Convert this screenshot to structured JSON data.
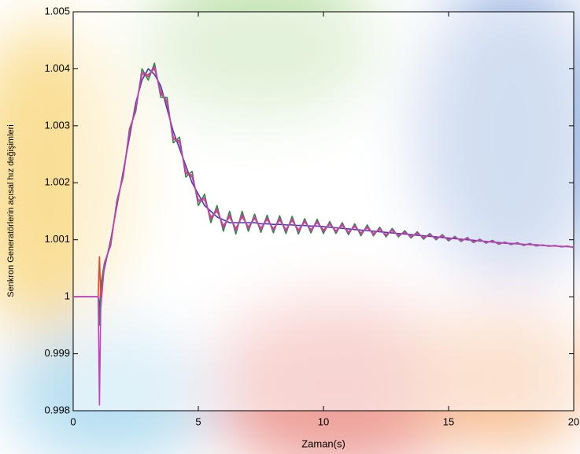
{
  "chart_data": {
    "type": "line",
    "xlabel": "Zaman(s)",
    "ylabel": "Senkron Generatörlerin açısal hız değişimleri",
    "xlim": [
      0,
      20
    ],
    "xticks": [
      0,
      5,
      10,
      15,
      20
    ],
    "ylim": [
      0.998,
      1.005
    ],
    "yticks": [
      0.998,
      0.999,
      1,
      1.001,
      1.002,
      1.003,
      1.004,
      1.005
    ],
    "grid": false,
    "x": [
      0,
      0.5,
      1,
      1.05,
      1.1,
      1.25,
      1.5,
      1.75,
      2,
      2.25,
      2.5,
      2.75,
      3,
      3.25,
      3.5,
      3.75,
      4,
      4.25,
      4.5,
      4.75,
      5,
      5.25,
      5.5,
      5.75,
      6,
      6.25,
      6.5,
      6.75,
      7,
      7.25,
      7.5,
      7.75,
      8,
      8.25,
      8.5,
      8.75,
      9,
      9.25,
      9.5,
      9.75,
      10,
      10.25,
      10.5,
      10.75,
      11,
      11.25,
      11.5,
      11.75,
      12,
      12.25,
      12.5,
      12.75,
      13,
      13.25,
      13.5,
      13.75,
      14,
      14.25,
      14.5,
      14.75,
      15,
      15.25,
      15.5,
      15.75,
      16,
      16.25,
      16.5,
      16.75,
      17,
      17.25,
      17.5,
      17.75,
      18,
      18.25,
      18.5,
      18.75,
      19,
      19.25,
      19.5,
      19.75,
      20
    ],
    "series": [
      {
        "color": "#3d3db8",
        "values": [
          1,
          1,
          1,
          0.9998,
          1.0001,
          1.0005,
          1.001,
          1.0016,
          1.0022,
          1.0028,
          1.0034,
          1.0038,
          1.004,
          1.0039,
          1.0037,
          1.0033,
          1.0029,
          1.0026,
          1.0023,
          1.002,
          1.0018,
          1.0016,
          1.0015,
          1.0014,
          1.00135,
          1.0013,
          1.0013,
          1.0013,
          1.0013,
          1.0013,
          1.00128,
          1.00128,
          1.00127,
          1.00127,
          1.00126,
          1.00126,
          1.00125,
          1.00125,
          1.00124,
          1.00124,
          1.00123,
          1.00122,
          1.00121,
          1.0012,
          1.00119,
          1.00118,
          1.00117,
          1.00116,
          1.00115,
          1.00114,
          1.00113,
          1.00112,
          1.00111,
          1.0011,
          1.00109,
          1.00108,
          1.00107,
          1.00106,
          1.00105,
          1.00104,
          1.00103,
          1.00102,
          1.00101,
          1.001,
          1.00099,
          1.00098,
          1.00097,
          1.00096,
          1.00095,
          1.00094,
          1.000935,
          1.00093,
          1.00092,
          1.000915,
          1.00091,
          1.0009,
          1.000895,
          1.00089,
          1.000885,
          1.00088,
          1.00087
        ]
      },
      {
        "color": "#2e8a3c",
        "values": [
          1,
          1,
          1,
          0.9995,
          1.0002,
          1.0006,
          1.0009,
          1.0017,
          1.0021,
          1.00295,
          1.00325,
          1.004,
          1.0038,
          1.0041,
          1.0035,
          1.0035,
          1.0027,
          1.0028,
          1.0021,
          1.0022,
          1.0016,
          1.0018,
          1.0013,
          1.0016,
          1.00115,
          1.0015,
          1.0011,
          1.0015,
          1.00115,
          1.00145,
          1.00113,
          1.00143,
          1.00112,
          1.00142,
          1.00111,
          1.00141,
          1.0011,
          1.00137,
          1.00112,
          1.00136,
          1.00111,
          1.00132,
          1.00111,
          1.0013,
          1.00109,
          1.00128,
          1.00107,
          1.00126,
          1.00107,
          1.00122,
          1.00105,
          1.0012,
          1.00105,
          1.00116,
          1.00103,
          1.00114,
          1.00101,
          1.00111,
          1.001,
          1.00109,
          1.00098,
          1.00106,
          1.00097,
          1.00104,
          1.00095,
          1.00101,
          1.00094,
          1.00099,
          1.00092,
          1.00096,
          1.000915,
          1.00095,
          1.0009,
          1.000935,
          1.00089,
          1.00091,
          1.000885,
          1.0009,
          1.000875,
          1.00089,
          1.00086
        ]
      },
      {
        "color": "#e8452c",
        "values": [
          1,
          1,
          1,
          1.0007,
          1,
          1.00055,
          1.00095,
          1.00165,
          1.00215,
          1.002875,
          1.003325,
          1.0039,
          1.0039,
          1.004,
          1.0036,
          1.0034,
          1.0028,
          1.0027,
          1.0022,
          1.0021,
          1.0017,
          1.0017,
          1.0014,
          1.0015,
          1.00125,
          1.0014,
          1.0012,
          1.0014,
          1.001225,
          1.001375,
          1.001205,
          1.001355,
          1.001195,
          1.001345,
          1.001185,
          1.001335,
          1.001175,
          1.00131,
          1.00118,
          1.0013,
          1.00117,
          1.00127,
          1.00116,
          1.00125,
          1.00114,
          1.00123,
          1.00112,
          1.00121,
          1.00111,
          1.00118,
          1.00109,
          1.00116,
          1.00108,
          1.00113,
          1.00106,
          1.00111,
          1.00104,
          1.001085,
          1.001025,
          1.001065,
          1.001005,
          1.00104,
          1.00099,
          1.00102,
          1.00097,
          1.000995,
          1.000955,
          1.000975,
          1.000935,
          1.00095,
          1.000925,
          1.00094,
          1.00091,
          1.000925,
          1.0009,
          1.000905,
          1.00089,
          1.000895,
          1.00088,
          1.000885,
          1.000865
        ]
      },
      {
        "color": "#c23fc2",
        "values": [
          1,
          1,
          1,
          0.9981,
          0.9998,
          1.00057,
          1.00093,
          1.00167,
          1.00213,
          1.002905,
          1.003295,
          1.00394,
          1.00386,
          1.00404,
          1.00356,
          1.00344,
          1.00276,
          1.00274,
          1.00216,
          1.00214,
          1.00166,
          1.00174,
          1.00136,
          1.00154,
          1.00121,
          1.00144,
          1.00116,
          1.00144,
          1.001195,
          1.001405,
          1.001175,
          1.001385,
          1.001165,
          1.001375,
          1.001155,
          1.001365,
          1.001145,
          1.001334,
          1.001156,
          1.001324,
          1.001146,
          1.00129,
          1.00114,
          1.00127,
          1.00112,
          1.00125,
          1.0011,
          1.00123,
          1.001094,
          1.001196,
          1.001074,
          1.001176,
          1.001068,
          1.001142,
          1.001048,
          1.001122,
          1.001028,
          1.001095,
          1.001015,
          1.001075,
          1.000995,
          1.001048,
          1.000982,
          1.001028,
          1.000962,
          1.001001,
          1.000949,
          1.000981,
          1.000929,
          1.000954,
          1.000921,
          1.000944,
          1.000906,
          1.000929,
          1.000896,
          1.000907,
          1.000888,
          1.000897,
          1.000878,
          1.000887,
          1.000863
        ]
      }
    ]
  }
}
